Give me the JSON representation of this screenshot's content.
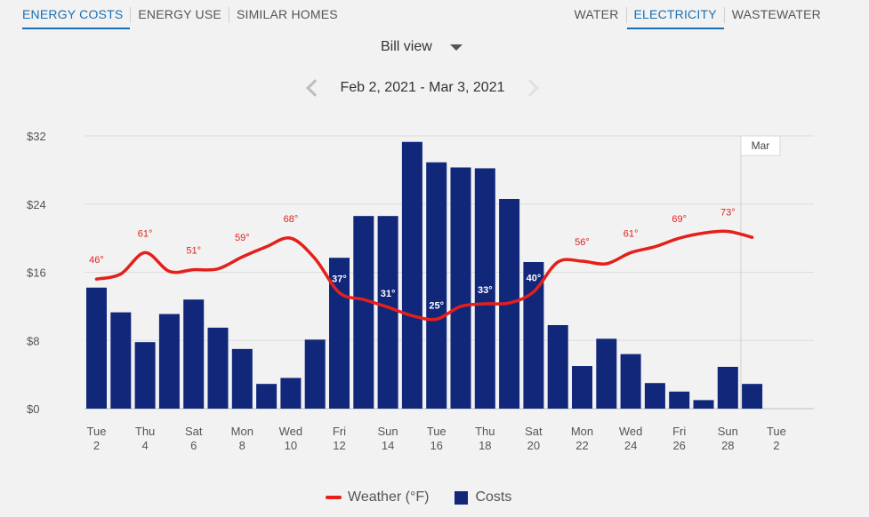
{
  "tabs_left": [
    {
      "label": "ENERGY COSTS",
      "active": true
    },
    {
      "label": "ENERGY USE",
      "active": false
    },
    {
      "label": "SIMILAR HOMES",
      "active": false
    }
  ],
  "tabs_right": [
    {
      "label": "WATER",
      "active": false
    },
    {
      "label": "ELECTRICITY",
      "active": true
    },
    {
      "label": "WASTEWATER",
      "active": false
    }
  ],
  "view_select": {
    "label": "Bill view"
  },
  "period": {
    "label": "Feb 2, 2021 - Mar 3, 2021"
  },
  "legend": {
    "weather": "Weather (°F)",
    "costs": "Costs"
  },
  "colors": {
    "bars": "#10277a",
    "weather_line": "#e3201b",
    "active_tab": "#1a6fb6"
  },
  "chart_data": {
    "type": "bar",
    "title": "",
    "xlabel": "",
    "ylabel": "",
    "ylim": [
      0,
      32
    ],
    "y_ticks": [
      "$0",
      "$8",
      "$16",
      "$24",
      "$32"
    ],
    "grid": true,
    "legend_position": "bottom",
    "x_tick_labels": [
      [
        "Tue",
        "2"
      ],
      [
        "Thu",
        "4"
      ],
      [
        "Sat",
        "6"
      ],
      [
        "Mon",
        "8"
      ],
      [
        "Wed",
        "10"
      ],
      [
        "Fri",
        "12"
      ],
      [
        "Sun",
        "14"
      ],
      [
        "Tue",
        "16"
      ],
      [
        "Thu",
        "18"
      ],
      [
        "Sat",
        "20"
      ],
      [
        "Mon",
        "22"
      ],
      [
        "Wed",
        "24"
      ],
      [
        "Fri",
        "26"
      ],
      [
        "Sun",
        "28"
      ],
      [
        "Tue",
        "2"
      ]
    ],
    "month_marker": {
      "label": "Mar",
      "day_index": 27
    },
    "series": [
      {
        "name": "Costs",
        "type": "bar",
        "values": [
          14.2,
          11.3,
          7.8,
          11.1,
          12.8,
          9.5,
          7.0,
          2.9,
          3.6,
          8.1,
          17.7,
          22.6,
          22.6,
          31.3,
          28.9,
          28.3,
          28.2,
          24.6,
          17.2,
          9.8,
          5.0,
          8.2,
          6.4,
          3.0,
          2.0,
          1.0,
          4.9,
          2.9
        ]
      },
      {
        "name": "Weather (°F)",
        "type": "line",
        "values_cost_axis": [
          15.2,
          15.8,
          18.3,
          16.1,
          16.3,
          16.4,
          17.8,
          19.0,
          20.0,
          17.6,
          13.6,
          12.8,
          11.9,
          10.9,
          10.5,
          12.0,
          12.3,
          12.4,
          13.7,
          17.2,
          17.3,
          17.0,
          18.3,
          19.0,
          20.0,
          20.6,
          20.8,
          20.1
        ],
        "labels": [
          {
            "day_index": 0,
            "text": "46°"
          },
          {
            "day_index": 2,
            "text": "61°"
          },
          {
            "day_index": 4,
            "text": "51°"
          },
          {
            "day_index": 6,
            "text": "59°"
          },
          {
            "day_index": 8,
            "text": "68°"
          },
          {
            "day_index": 10,
            "text": "37°"
          },
          {
            "day_index": 12,
            "text": "31°"
          },
          {
            "day_index": 14,
            "text": "25°"
          },
          {
            "day_index": 16,
            "text": "33°"
          },
          {
            "day_index": 18,
            "text": "40°"
          },
          {
            "day_index": 20,
            "text": "56°"
          },
          {
            "day_index": 22,
            "text": "61°"
          },
          {
            "day_index": 24,
            "text": "69°"
          },
          {
            "day_index": 26,
            "text": "73°"
          }
        ]
      }
    ]
  }
}
